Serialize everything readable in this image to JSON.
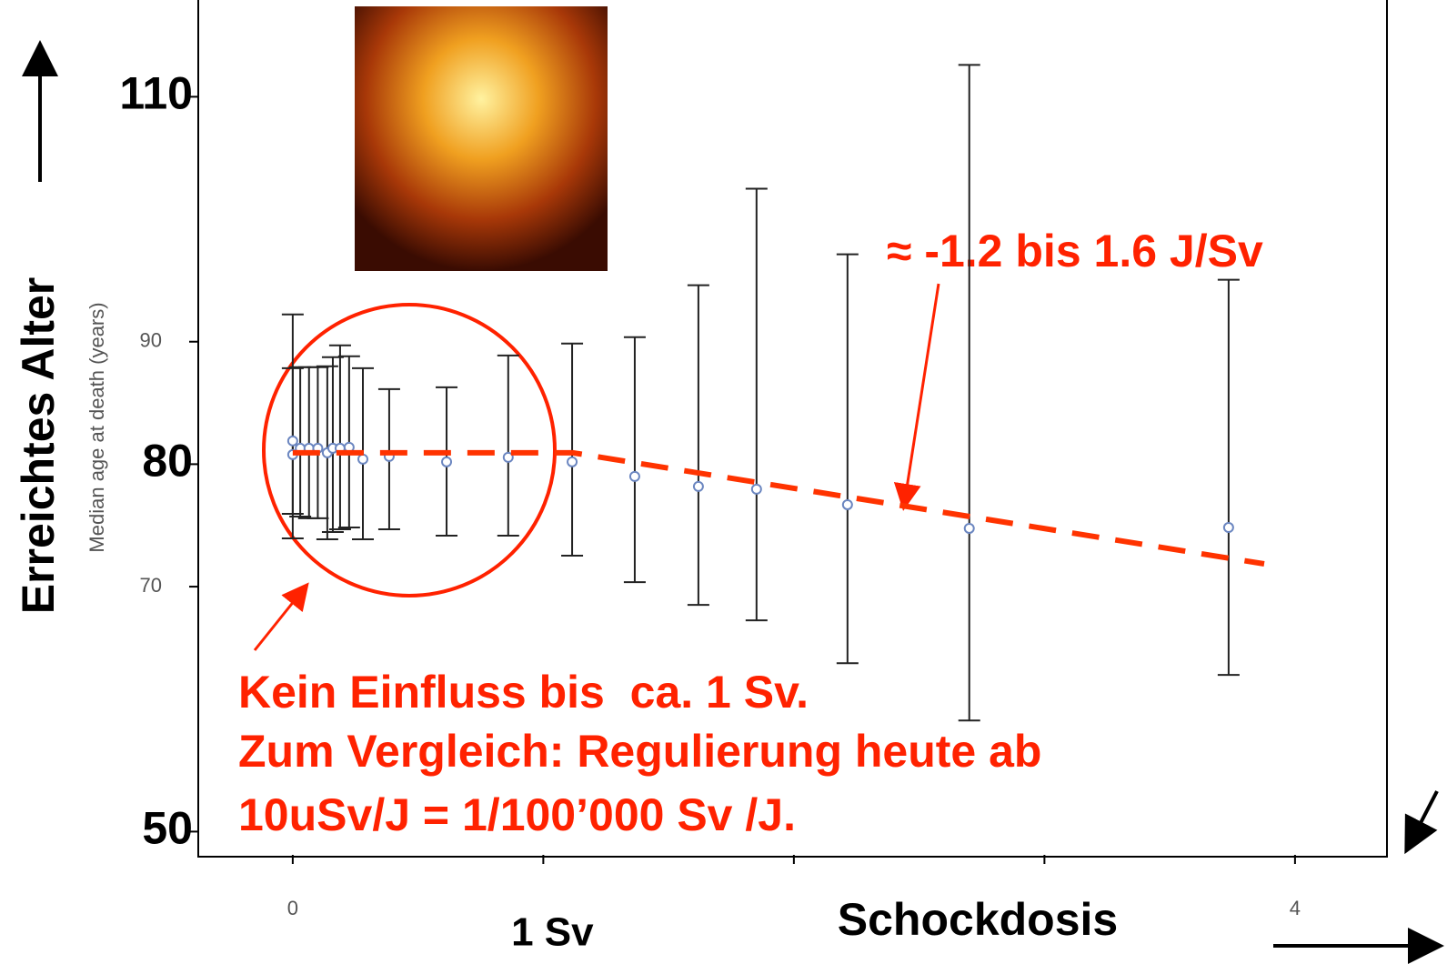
{
  "chart_data": {
    "type": "errorbar",
    "y_label": "Median age at death (years)",
    "y_label_overlay": "Erreichtes Alter",
    "x_label_overlay": "Schockdosis",
    "xlim": [
      -0.377,
      4.367
    ],
    "ylim": [
      48.1,
      117.9
    ],
    "xticks": [
      0,
      {
        "value": 1,
        "label": "1 Sv"
      },
      {
        "value": 2,
        "label": null
      },
      {
        "value": 3,
        "label": null
      },
      4
    ],
    "yticks": [
      70,
      90
    ],
    "yticks_overlay": [
      50,
      80,
      110
    ],
    "series": [
      {
        "name": null,
        "color": "#6b86c0",
        "x": [
          0,
          0,
          0.03,
          0.065,
          0.1,
          0.138,
          0.16,
          0.189,
          0.225,
          0.28,
          0.385,
          0.614,
          0.86,
          1.115,
          1.365,
          1.619,
          1.851,
          2.214,
          2.7,
          3.735
        ],
        "values": [
          80.78,
          81.9,
          81.3,
          81.3,
          81.3,
          80.93,
          81.3,
          81.3,
          81.38,
          80.41,
          80.63,
          80.19,
          80.56,
          80.19,
          79.0,
          78.18,
          77.96,
          76.69,
          74.76,
          74.83
        ],
        "upper": [
          92.23,
          87.84,
          87.92,
          87.92,
          87.92,
          87.99,
          88.74,
          89.7,
          88.81,
          87.84,
          86.13,
          86.28,
          88.88,
          89.85,
          90.37,
          94.61,
          102.49,
          97.14,
          112.6,
          95.06
        ],
        "lower": [
          73.94,
          75.95,
          75.72,
          75.58,
          75.58,
          73.87,
          74.46,
          74.68,
          74.83,
          73.87,
          74.68,
          74.16,
          74.16,
          72.53,
          70.37,
          68.51,
          67.25,
          63.75,
          59.07,
          62.79
        ]
      }
    ],
    "trend": {
      "color": "#ff3300",
      "x": [
        0,
        1.118,
        3.877
      ],
      "values": [
        80.93,
        80.93,
        71.86
      ]
    },
    "annotations": [
      "≈ -1.2 bis 1.6 J/Sv",
      "Kein Einfluss bis  ca. 1 Sv.",
      "Zum Vergleich: Regulierung heute ab",
      "10uSv/J = 1/100’000 Sv /J."
    ]
  }
}
